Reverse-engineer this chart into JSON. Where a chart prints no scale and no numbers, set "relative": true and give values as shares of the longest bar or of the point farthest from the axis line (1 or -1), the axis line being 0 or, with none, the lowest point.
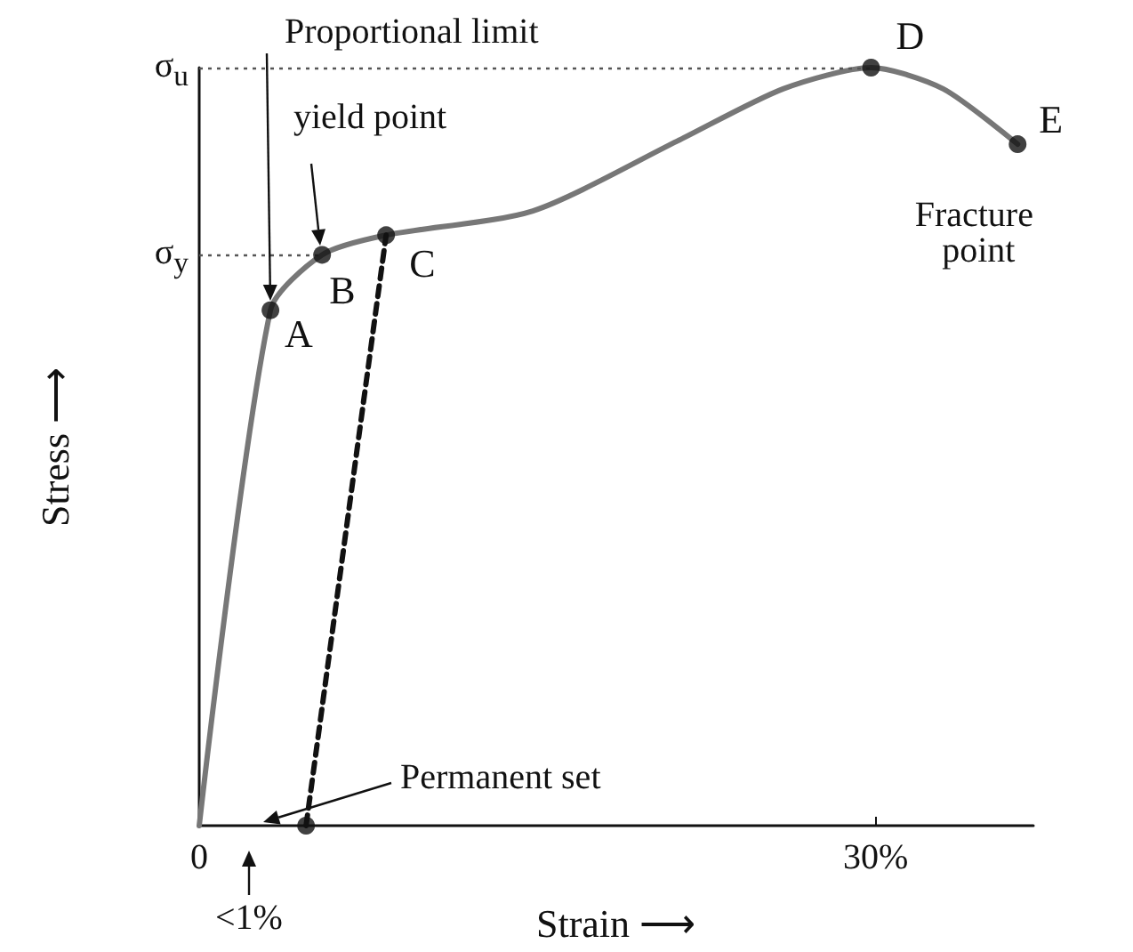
{
  "chart_data": {
    "type": "line",
    "relative": true,
    "xlabel": "Strain ⟶",
    "ylabel": "Stress ⟶",
    "xlim": [
      0,
      37
    ],
    "xticks": [
      0,
      {
        "value": 30,
        "label": "30%"
      }
    ],
    "grid": false,
    "series": [
      {
        "color": "#777777",
        "x": [
          0,
          3.16,
          5.45,
          8.29,
          14.8,
          21.2,
          25.9,
          29.8,
          33.0,
          36.3
        ],
        "values": [
          0,
          0.68,
          0.753,
          0.779,
          0.811,
          0.903,
          0.972,
          1,
          0.972,
          0.899
        ],
        "marker": "none",
        "line_style": "solid"
      },
      {
        "color": "#111111",
        "x": [
          4.74,
          8.29
        ],
        "values": [
          0,
          0.779
        ],
        "marker": "none",
        "line_style": "dashed"
      },
      {
        "type": "scatter",
        "color": "#111111",
        "x": [
          3.16,
          5.45,
          8.29,
          29.8,
          36.3,
          4.74
        ],
        "values": [
          0.68,
          0.753,
          0.779,
          1,
          0.899,
          0
        ],
        "marker": "circle"
      }
    ],
    "ref_lines": [
      {
        "axis": "y",
        "value": 1,
        "label": "σ$_{u}$",
        "line_style": "dotted",
        "color": "#555555"
      },
      {
        "axis": "y",
        "value": 0.753,
        "label": "σ$_{y}$",
        "line_style": "dotted",
        "color": "#555555"
      }
    ],
    "annotations": [
      "Proportional limit",
      "yield point",
      {
        "text": "A",
        "x": 3.16,
        "y": 0.68
      },
      {
        "text": "B",
        "x": 5.45,
        "y": 0.753
      },
      {
        "text": "C",
        "x": 8.29,
        "y": 0.779
      },
      {
        "text": "D",
        "x": 29.8,
        "y": 1
      },
      {
        "text": "E",
        "x": 36.3,
        "y": 0.899
      },
      {
        "text": "Fracture point",
        "x": 36.3,
        "y": 0.899
      },
      "Permanent set",
      "<1%"
    ]
  }
}
